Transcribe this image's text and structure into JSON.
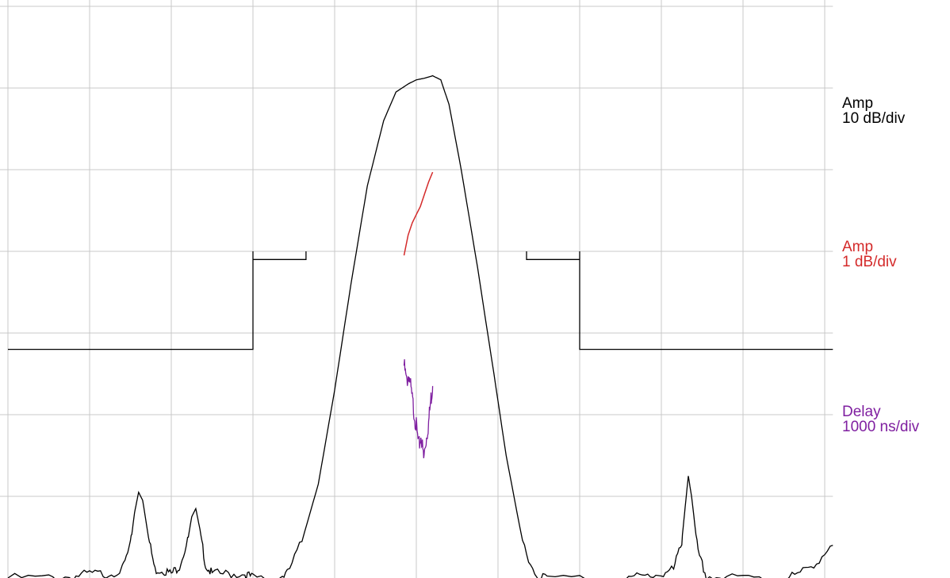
{
  "chart_data": {
    "type": "line",
    "grid": true,
    "grid_divisions": {
      "x": 10,
      "y": 7
    },
    "legend_position": "right",
    "colors": {
      "grid": "#c8c8c8",
      "amp_coarse": "#000000",
      "amp_fine": "#d42a2a",
      "delay": "#7f1fa0",
      "mask": "#000000",
      "background": "#ffffff"
    },
    "legend": [
      {
        "id": "amp_coarse",
        "name": "Amp",
        "scale": "10 dB/div",
        "color": "#000000"
      },
      {
        "id": "amp_fine",
        "name": "Amp",
        "scale": "1 dB/div",
        "color": "#d42a2a"
      },
      {
        "id": "delay",
        "name": "Delay",
        "scale": "1000 ns/div",
        "color": "#7f1fa0"
      }
    ],
    "x_range": [
      0,
      10.1
    ],
    "y_range": [
      0,
      7
    ],
    "x_units": "divisions",
    "y_units": "divisions",
    "series": [
      {
        "id": "amp_coarse",
        "color": "#000000",
        "points": [
          [
            0.0,
            0.0
          ],
          [
            0.5,
            0.0
          ],
          [
            0.8,
            0.02
          ],
          [
            1.0,
            0.05
          ],
          [
            1.2,
            0.05
          ],
          [
            1.4,
            0.1
          ],
          [
            1.5,
            0.4
          ],
          [
            1.55,
            0.8
          ],
          [
            1.6,
            1.05
          ],
          [
            1.65,
            0.95
          ],
          [
            1.72,
            0.5
          ],
          [
            1.8,
            0.1
          ],
          [
            1.9,
            0.1
          ],
          [
            2.0,
            0.05
          ],
          [
            2.1,
            0.15
          ],
          [
            2.2,
            0.45
          ],
          [
            2.25,
            0.75
          ],
          [
            2.3,
            0.85
          ],
          [
            2.35,
            0.6
          ],
          [
            2.42,
            0.15
          ],
          [
            2.5,
            0.05
          ],
          [
            2.7,
            0.05
          ],
          [
            2.9,
            0.05
          ],
          [
            3.0,
            0.0
          ],
          [
            3.3,
            0.0
          ],
          [
            3.42,
            0.05
          ],
          [
            3.6,
            0.45
          ],
          [
            3.8,
            1.15
          ],
          [
            4.0,
            2.3
          ],
          [
            4.2,
            3.6
          ],
          [
            4.4,
            4.8
          ],
          [
            4.6,
            5.6
          ],
          [
            4.75,
            5.95
          ],
          [
            4.9,
            6.05
          ],
          [
            5.0,
            6.1
          ],
          [
            5.1,
            6.12
          ],
          [
            5.2,
            6.15
          ],
          [
            5.3,
            6.1
          ],
          [
            5.4,
            5.8
          ],
          [
            5.55,
            5.0
          ],
          [
            5.75,
            3.8
          ],
          [
            5.95,
            2.5
          ],
          [
            6.1,
            1.5
          ],
          [
            6.3,
            0.45
          ],
          [
            6.45,
            0.05
          ],
          [
            6.6,
            0.0
          ],
          [
            7.2,
            0.0
          ],
          [
            7.6,
            0.0
          ],
          [
            7.8,
            0.02
          ],
          [
            8.0,
            0.05
          ],
          [
            8.15,
            0.1
          ],
          [
            8.25,
            0.45
          ],
          [
            8.3,
            0.95
          ],
          [
            8.33,
            1.25
          ],
          [
            8.37,
            1.0
          ],
          [
            8.45,
            0.3
          ],
          [
            8.55,
            0.02
          ],
          [
            8.8,
            0.0
          ],
          [
            9.2,
            0.0
          ],
          [
            9.5,
            0.0
          ],
          [
            9.7,
            0.05
          ],
          [
            9.9,
            0.2
          ],
          [
            10.1,
            0.4
          ]
        ]
      },
      {
        "id": "amp_fine",
        "color": "#d42a2a",
        "points": [
          [
            4.85,
            3.95
          ],
          [
            4.9,
            4.2
          ],
          [
            4.95,
            4.35
          ],
          [
            5.0,
            4.45
          ],
          [
            5.05,
            4.55
          ],
          [
            5.1,
            4.7
          ],
          [
            5.15,
            4.85
          ],
          [
            5.2,
            4.97
          ]
        ]
      },
      {
        "id": "delay",
        "color": "#7f1fa0",
        "points": [
          [
            4.85,
            2.6
          ],
          [
            4.88,
            2.4
          ],
          [
            4.91,
            2.5
          ],
          [
            4.94,
            2.25
          ],
          [
            4.97,
            2.05
          ],
          [
            5.0,
            1.85
          ],
          [
            5.03,
            1.6
          ],
          [
            5.06,
            1.75
          ],
          [
            5.09,
            1.45
          ],
          [
            5.12,
            1.7
          ],
          [
            5.15,
            1.9
          ],
          [
            5.18,
            2.2
          ],
          [
            5.2,
            2.35
          ]
        ]
      },
      {
        "id": "mask",
        "color": "#000000",
        "points": [
          [
            0.0,
            2.8
          ],
          [
            3.0,
            2.8
          ],
          [
            3.0,
            4.0
          ],
          [
            3.0,
            3.9
          ],
          [
            3.65,
            3.9
          ],
          [
            3.65,
            4.0
          ]
        ]
      },
      {
        "id": "mask_right",
        "color": "#000000",
        "points": [
          [
            6.35,
            4.0
          ],
          [
            6.35,
            3.9
          ],
          [
            7.0,
            3.9
          ],
          [
            7.0,
            4.0
          ],
          [
            7.0,
            2.8
          ],
          [
            10.1,
            2.8
          ]
        ]
      }
    ]
  }
}
